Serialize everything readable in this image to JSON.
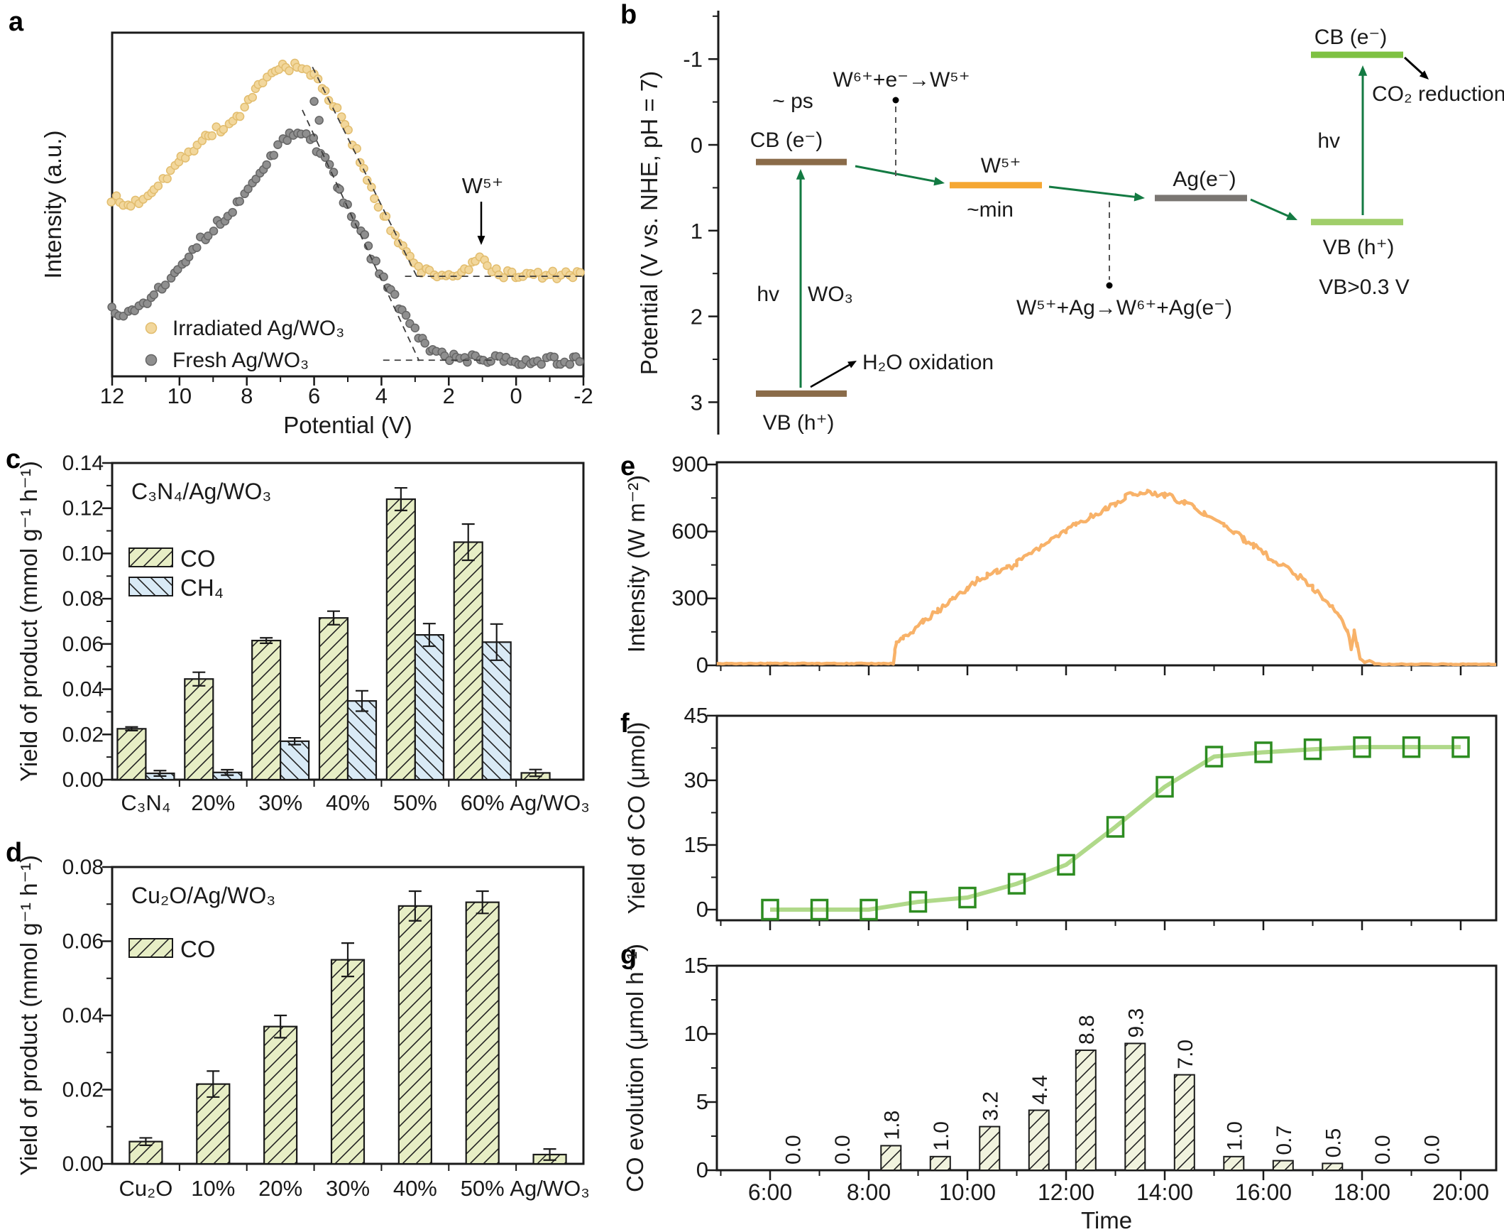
{
  "panel_letters": {
    "a": "a",
    "b": "b",
    "c": "c",
    "d": "d",
    "e": "e",
    "f": "f",
    "g": "g"
  },
  "colors": {
    "axis": "#1a1a1a",
    "dash": "#3c3c3c",
    "hatch": "#222222",
    "a_yellow": "#f2d79c",
    "a_yellow_edge": "#e2bd6e",
    "a_gray": "#8f8f8f",
    "a_gray_edge": "#666666",
    "b_brown": "#8a6b49",
    "b_orange": "#f5a733",
    "b_gray": "#7a7672",
    "b_cb_green": "#7ec142",
    "b_vb_green": "#a0ce6a",
    "b_arrow_green": "#137a42",
    "b_orange_text": "#f5a11c",
    "b_green_text": "#137a42",
    "co_fill": "#e7eec5",
    "ch4_fill": "#d9eaf6",
    "g_fill": "#f1f3de",
    "e_line": "#f8b269",
    "f_line": "#b0d98a",
    "f_marker": "#2d8c21"
  },
  "chart_data": [
    {
      "id": "a",
      "type": "scatter",
      "xlabel": "Potential (V)",
      "ylabel": "Intensity (a.u.)",
      "x_range": [
        12,
        -2
      ],
      "x_tick_values": [
        12,
        10,
        8,
        6,
        4,
        2,
        0,
        -2
      ],
      "x_tick_labels": [
        "12",
        "10",
        "8",
        "6",
        "4",
        "2",
        "0",
        "-2"
      ],
      "annotation": {
        "text": "W⁵⁺"
      },
      "legend": [
        {
          "label": "Irradiated Ag/WO₃"
        },
        {
          "label": "Fresh Ag/WO₃"
        }
      ],
      "series": [
        {
          "name": "Irradiated Ag/WO₃",
          "color": "#f2d79c",
          "edge": "#e2bd6e",
          "anchors": [
            [
              12,
              0.52
            ],
            [
              11.6,
              0.495
            ],
            [
              11.2,
              0.51
            ],
            [
              10.8,
              0.545
            ],
            [
              10.4,
              0.585
            ],
            [
              10.0,
              0.625
            ],
            [
              9.6,
              0.665
            ],
            [
              9.2,
              0.7
            ],
            [
              8.9,
              0.715
            ],
            [
              8.6,
              0.725
            ],
            [
              8.3,
              0.755
            ],
            [
              8.0,
              0.79
            ],
            [
              7.6,
              0.845
            ],
            [
              7.2,
              0.885
            ],
            [
              6.9,
              0.905
            ],
            [
              6.6,
              0.9
            ],
            [
              6.3,
              0.89
            ],
            [
              6.0,
              0.875
            ],
            [
              5.7,
              0.835
            ],
            [
              5.4,
              0.785
            ],
            [
              5.1,
              0.73
            ],
            [
              4.8,
              0.665
            ],
            [
              4.5,
              0.6
            ],
            [
              4.2,
              0.53
            ],
            [
              3.9,
              0.465
            ],
            [
              3.6,
              0.41
            ],
            [
              3.3,
              0.36
            ],
            [
              3.0,
              0.325
            ],
            [
              2.7,
              0.305
            ],
            [
              2.3,
              0.295
            ],
            [
              1.9,
              0.295
            ],
            [
              1.5,
              0.305
            ],
            [
              1.2,
              0.33
            ],
            [
              1.05,
              0.345
            ],
            [
              0.9,
              0.33
            ],
            [
              0.7,
              0.312
            ],
            [
              0.5,
              0.3
            ],
            [
              0.2,
              0.295
            ],
            [
              -0.3,
              0.293
            ],
            [
              -0.8,
              0.295
            ],
            [
              -1.3,
              0.294
            ],
            [
              -1.7,
              0.293
            ],
            [
              -2.0,
              0.295
            ]
          ],
          "outliers": []
        },
        {
          "name": "Fresh Ag/WO₃",
          "color": "#8f8f8f",
          "edge": "#666666",
          "anchors": [
            [
              12,
              0.2
            ],
            [
              11.7,
              0.185
            ],
            [
              11.4,
              0.19
            ],
            [
              11.1,
              0.21
            ],
            [
              10.8,
              0.235
            ],
            [
              10.5,
              0.265
            ],
            [
              10.2,
              0.3
            ],
            [
              9.9,
              0.335
            ],
            [
              9.6,
              0.37
            ],
            [
              9.3,
              0.4
            ],
            [
              9.0,
              0.43
            ],
            [
              8.7,
              0.46
            ],
            [
              8.4,
              0.49
            ],
            [
              8.1,
              0.525
            ],
            [
              7.8,
              0.565
            ],
            [
              7.5,
              0.61
            ],
            [
              7.2,
              0.65
            ],
            [
              6.9,
              0.685
            ],
            [
              6.6,
              0.705
            ],
            [
              6.4,
              0.71
            ],
            [
              6.2,
              0.7
            ],
            [
              6.0,
              0.68
            ],
            [
              5.8,
              0.65
            ],
            [
              5.6,
              0.615
            ],
            [
              5.4,
              0.575
            ],
            [
              5.2,
              0.535
            ],
            [
              5.0,
              0.495
            ],
            [
              4.8,
              0.455
            ],
            [
              4.6,
              0.415
            ],
            [
              4.4,
              0.375
            ],
            [
              4.2,
              0.335
            ],
            [
              4.0,
              0.295
            ],
            [
              3.8,
              0.26
            ],
            [
              3.6,
              0.225
            ],
            [
              3.4,
              0.19
            ],
            [
              3.2,
              0.16
            ],
            [
              3.0,
              0.13
            ],
            [
              2.8,
              0.105
            ],
            [
              2.6,
              0.085
            ],
            [
              2.4,
              0.07
            ],
            [
              2.2,
              0.06
            ],
            [
              2.0,
              0.055
            ],
            [
              1.6,
              0.052
            ],
            [
              1.2,
              0.05
            ],
            [
              0.8,
              0.048
            ],
            [
              0.4,
              0.047
            ],
            [
              0.0,
              0.047
            ],
            [
              -0.5,
              0.046
            ],
            [
              -1.0,
              0.046
            ],
            [
              -1.5,
              0.045
            ],
            [
              -2.0,
              0.045
            ]
          ],
          "outliers": [
            [
              6.0,
              0.8
            ],
            [
              5.85,
              0.745
            ]
          ]
        }
      ],
      "guides": [
        {
          "pts": [
            [
              6.05,
              0.9
            ],
            [
              2.95,
              0.291
            ]
          ]
        },
        {
          "pts": [
            [
              3.3,
              0.291
            ],
            [
              -2.05,
              0.291
            ]
          ]
        },
        {
          "pts": [
            [
              6.35,
              0.775
            ],
            [
              2.88,
              0.045
            ]
          ]
        },
        {
          "pts": [
            [
              3.95,
              0.047
            ],
            [
              0.55,
              0.047
            ]
          ]
        }
      ]
    },
    {
      "id": "b",
      "type": "energy-diagram",
      "ylabel": "Potential (V vs. NHE, pH = 7)",
      "y_tick_values": [
        -1,
        0,
        1,
        2,
        3
      ],
      "y_tick_labels": [
        "-1",
        "0",
        "1",
        "2",
        "3"
      ],
      "levels": {
        "wo3_cb": {
          "v": 0.2,
          "label": "CB (e⁻)"
        },
        "wo3_vb": {
          "v": 2.9,
          "label": "VB (h⁺)"
        },
        "w5": {
          "v": 0.47,
          "label": "W⁵⁺"
        },
        "ag": {
          "v": 0.62,
          "label": "Ag(e⁻)"
        },
        "vb": {
          "v": 0.9,
          "label": "VB (h⁺)"
        },
        "cb": {
          "v": -1.05,
          "label": "CB (e⁻)"
        }
      },
      "texts": {
        "ps": "~ ps",
        "cb_e": "CB (e⁻)",
        "min": "~min",
        "hv1": "hv",
        "wo3": "WO₃",
        "hv2": "hv",
        "co2": "CO₂ reduction",
        "h2o": "H₂O oxidation",
        "eq1": "W⁶⁺+e⁻→W⁵⁺",
        "eq2": "W⁵⁺+Ag→W⁶⁺+Ag(e⁻)",
        "vb_note": "VB>0.3 V"
      }
    },
    {
      "id": "c",
      "type": "bar",
      "title": "C₃N₄/Ag/WO₃",
      "ylabel": "Yield of product (mmol g⁻¹ h⁻¹)",
      "ylim": [
        0,
        0.14
      ],
      "y_tick_values": [
        0,
        0.02,
        0.04,
        0.06,
        0.08,
        0.1,
        0.12,
        0.14
      ],
      "y_tick_labels": [
        "0.00",
        "0.02",
        "0.04",
        "0.06",
        "0.08",
        "0.10",
        "0.12",
        "0.14"
      ],
      "categories": [
        "C₃N₄",
        "20%",
        "30%",
        "40%",
        "50%",
        "60%",
        "Ag/WO₃"
      ],
      "series": [
        {
          "name": "CO",
          "hatch": "fwd",
          "fill": "#e7eec5",
          "values": [
            0.0225,
            0.0445,
            0.0615,
            0.0715,
            0.124,
            0.105,
            0.003
          ],
          "errors": [
            0.0008,
            0.003,
            0.0012,
            0.003,
            0.005,
            0.008,
            0.0015
          ]
        },
        {
          "name": "CH₄",
          "hatch": "bwd",
          "fill": "#d9eaf6",
          "values": [
            0.0028,
            0.0032,
            0.017,
            0.0348,
            0.064,
            0.0608,
            null
          ],
          "errors": [
            0.0012,
            0.0012,
            0.0015,
            0.0045,
            0.005,
            0.008,
            null
          ]
        }
      ]
    },
    {
      "id": "d",
      "type": "bar",
      "title": "Cu₂O/Ag/WO₃",
      "ylabel": "Yield of product (mmol g⁻¹ h⁻¹)",
      "ylim": [
        0,
        0.08
      ],
      "y_tick_values": [
        0,
        0.02,
        0.04,
        0.06,
        0.08
      ],
      "y_tick_labels": [
        "0.00",
        "0.02",
        "0.04",
        "0.06",
        "0.08"
      ],
      "categories": [
        "Cu₂O",
        "10%",
        "20%",
        "30%",
        "40%",
        "50%",
        "Ag/WO₃"
      ],
      "series": [
        {
          "name": "CO",
          "hatch": "fwd",
          "fill": "#e7eec5",
          "values": [
            0.006,
            0.0215,
            0.037,
            0.055,
            0.0695,
            0.0705,
            0.0025
          ],
          "errors": [
            0.001,
            0.0035,
            0.003,
            0.0045,
            0.004,
            0.003,
            0.0015
          ]
        }
      ]
    },
    {
      "id": "e",
      "type": "line",
      "ylabel": "Intensity (W m⁻²)",
      "ylim": [
        0,
        900
      ],
      "y_tick_values": [
        0,
        300,
        600,
        900
      ],
      "y_tick_labels": [
        "0",
        "300",
        "600",
        "900"
      ],
      "x_hours_range": [
        4.92,
        20.72
      ],
      "points": [
        [
          4.92,
          8
        ],
        [
          6,
          8
        ],
        [
          7,
          8
        ],
        [
          8,
          8
        ],
        [
          8.5,
          8
        ],
        [
          8.53,
          70
        ],
        [
          8.56,
          100
        ],
        [
          8.7,
          125
        ],
        [
          8.9,
          160
        ],
        [
          9.1,
          195
        ],
        [
          9.4,
          245
        ],
        [
          9.7,
          295
        ],
        [
          10,
          345
        ],
        [
          10.2,
          380
        ],
        [
          10.4,
          405
        ],
        [
          10.6,
          418
        ],
        [
          10.8,
          432
        ],
        [
          11,
          460
        ],
        [
          11.2,
          492
        ],
        [
          11.5,
          535
        ],
        [
          11.8,
          575
        ],
        [
          12,
          600
        ],
        [
          12.2,
          630
        ],
        [
          12.5,
          668
        ],
        [
          12.8,
          700
        ],
        [
          13,
          728
        ],
        [
          13.2,
          752
        ],
        [
          13.35,
          770
        ],
        [
          13.5,
          778
        ],
        [
          13.65,
          780
        ],
        [
          13.8,
          772
        ],
        [
          14,
          762
        ],
        [
          14.2,
          748
        ],
        [
          14.4,
          728
        ],
        [
          14.6,
          705
        ],
        [
          14.8,
          680
        ],
        [
          15,
          655
        ],
        [
          15.2,
          625
        ],
        [
          15.4,
          595
        ],
        [
          15.6,
          565
        ],
        [
          15.8,
          535
        ],
        [
          16,
          505
        ],
        [
          16.2,
          472
        ],
        [
          16.4,
          442
        ],
        [
          16.6,
          415
        ],
        [
          16.8,
          385
        ],
        [
          17,
          350
        ],
        [
          17.2,
          308
        ],
        [
          17.4,
          262
        ],
        [
          17.55,
          222
        ],
        [
          17.7,
          165
        ],
        [
          17.78,
          75
        ],
        [
          17.84,
          155
        ],
        [
          17.9,
          95
        ],
        [
          17.96,
          30
        ],
        [
          18.05,
          14
        ],
        [
          18.15,
          22
        ],
        [
          18.25,
          8
        ],
        [
          18.4,
          5
        ],
        [
          19,
          5
        ],
        [
          20,
          5
        ],
        [
          20.72,
          5
        ]
      ]
    },
    {
      "id": "f",
      "type": "line-marker",
      "ylabel": "Yield of CO (μmol)",
      "ylim": [
        0,
        45
      ],
      "y_tick_values": [
        0,
        15,
        30,
        45
      ],
      "y_tick_labels": [
        "0",
        "15",
        "30",
        "45"
      ],
      "x_hours": [
        6,
        7,
        8,
        9,
        10,
        11,
        12,
        13,
        14,
        15,
        16,
        17,
        18,
        19,
        20
      ],
      "values": [
        0,
        0,
        0,
        1.8,
        2.8,
        6.0,
        10.4,
        19.2,
        28.5,
        35.5,
        36.5,
        37.2,
        37.7,
        37.7,
        37.7
      ]
    },
    {
      "id": "g",
      "type": "bar-time",
      "ylabel": "CO evolution (μmol h⁻¹)",
      "xlabel": "Time",
      "ylim": [
        0,
        15
      ],
      "y_tick_values": [
        0,
        5,
        10,
        15
      ],
      "y_tick_labels": [
        "0",
        "5",
        "10",
        "15"
      ],
      "bar_hours": [
        6.45,
        7.45,
        8.45,
        9.45,
        10.45,
        11.45,
        12.4,
        13.4,
        14.4,
        15.4,
        16.4,
        17.4,
        18.4,
        19.4
      ],
      "values": [
        0,
        0,
        1.8,
        1.0,
        3.2,
        4.4,
        8.8,
        9.3,
        7.0,
        1.0,
        0.7,
        0.5,
        0,
        0
      ],
      "value_labels": [
        "0.0",
        "0.0",
        "1.8",
        "1.0",
        "3.2",
        "4.4",
        "8.8",
        "9.3",
        "7.0",
        "1.0",
        "0.7",
        "0.5",
        "0.0",
        "0.0"
      ],
      "x_tick_hours": [
        6,
        8,
        10,
        12,
        14,
        16,
        18,
        20
      ],
      "x_tick_labels": [
        "6:00",
        "8:00",
        "10:00",
        "12:00",
        "14:00",
        "16:00",
        "18:00",
        "20:00"
      ]
    }
  ]
}
